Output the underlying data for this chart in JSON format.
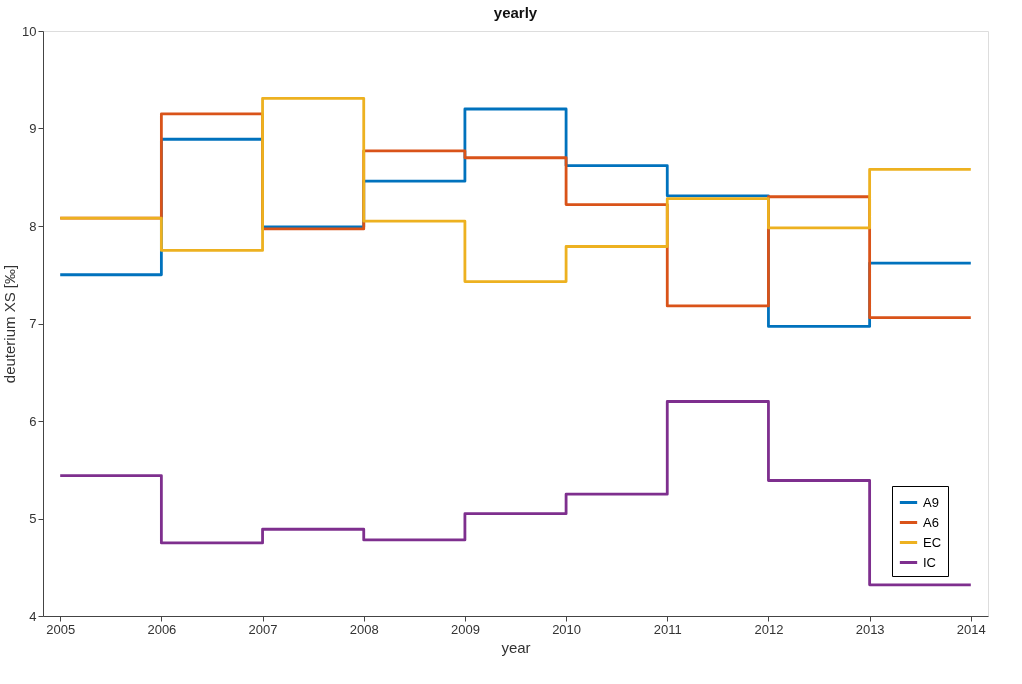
{
  "chart_data": {
    "type": "step",
    "title": "yearly",
    "xlabel": "year",
    "ylabel": "deuterium XS [‰]",
    "x": [
      2005,
      2006,
      2007,
      2008,
      2009,
      2010,
      2011,
      2012,
      2013,
      2014
    ],
    "series": [
      {
        "name": "A9",
        "color": "#0072bd",
        "values": [
          7.5,
          8.89,
          7.99,
          8.46,
          9.2,
          8.62,
          8.31,
          6.97,
          7.62,
          7.62
        ]
      },
      {
        "name": "A6",
        "color": "#d95319",
        "values": [
          8.08,
          9.15,
          7.97,
          8.77,
          8.7,
          8.22,
          7.18,
          8.3,
          7.06,
          7.06
        ]
      },
      {
        "name": "EC",
        "color": "#edb120",
        "values": [
          8.08,
          7.75,
          9.31,
          8.05,
          7.43,
          7.79,
          8.28,
          7.98,
          8.58,
          8.58
        ]
      },
      {
        "name": "IC",
        "color": "#7e2f8e",
        "values": [
          5.44,
          4.75,
          4.89,
          4.78,
          5.05,
          5.25,
          6.2,
          5.39,
          4.32,
          4.32
        ]
      }
    ],
    "xlim": [
      2004.83,
      2014.17
    ],
    "xticks": [
      2005,
      2006,
      2007,
      2008,
      2009,
      2010,
      2011,
      2012,
      2013,
      2014
    ],
    "ylim": [
      4,
      10
    ],
    "yticks": [
      4,
      5,
      6,
      7,
      8,
      9,
      10
    ],
    "legend": "bottom right",
    "grid": false,
    "line_style": "solid"
  }
}
